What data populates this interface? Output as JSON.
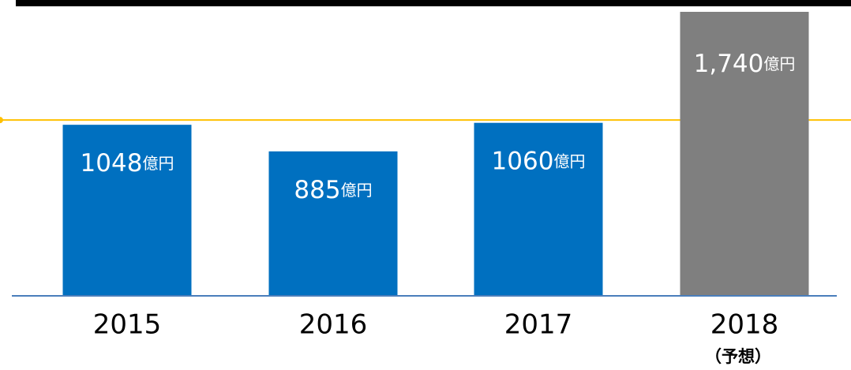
{
  "chart_data": {
    "type": "bar",
    "categories": [
      "2015",
      "2016",
      "2017",
      "2018"
    ],
    "category_notes": [
      null,
      null,
      null,
      "（予想）"
    ],
    "values": [
      1048,
      885,
      1060,
      1740
    ],
    "value_labels": [
      "1048億円",
      "885億円",
      "1060億円",
      "1,740億円"
    ],
    "colors": [
      "#0070c0",
      "#0070c0",
      "#0070c0",
      "#7f7f7f"
    ],
    "reference_line": {
      "value": 1077,
      "color": "#ffc000"
    },
    "baseline_color": "#4a7ebb"
  }
}
